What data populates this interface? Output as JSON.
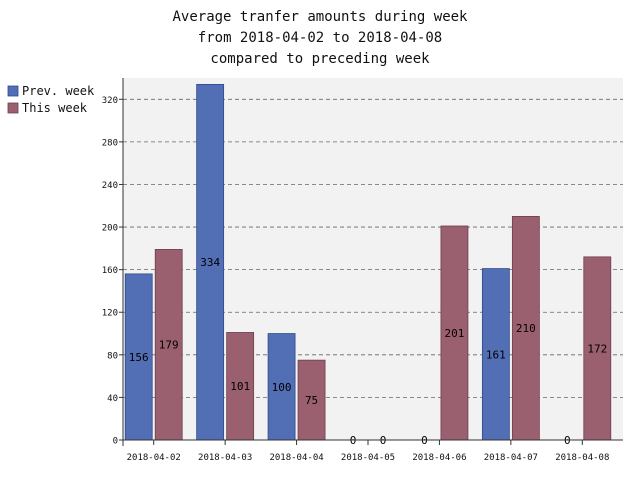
{
  "chart_data": {
    "type": "bar",
    "title_lines": [
      "Average tranfer amounts during week",
      "from 2018-04-02 to 2018-04-08",
      "compared to preceding week"
    ],
    "xlabel": "",
    "ylabel": "",
    "categories": [
      "2018-04-02",
      "2018-04-03",
      "2018-04-04",
      "2018-04-05",
      "2018-04-06",
      "2018-04-07",
      "2018-04-08"
    ],
    "series": [
      {
        "name": "Prev. week",
        "color": "#526fb5",
        "values": [
          156,
          334,
          100,
          0,
          0,
          161,
          0
        ]
      },
      {
        "name": "This week",
        "color": "#9b6070",
        "values": [
          179,
          101,
          75,
          0,
          201,
          210,
          172
        ]
      }
    ],
    "value_labels": {
      "Prev. week": [
        "156",
        "334",
        "100",
        "0",
        "0",
        "161",
        "0"
      ],
      "This week": [
        "179",
        "101",
        "75",
        "0",
        "201",
        "210",
        "172"
      ]
    },
    "ylim": [
      0,
      340
    ],
    "yticks": [
      0,
      40,
      80,
      120,
      160,
      200,
      240,
      280,
      320
    ],
    "grid": true,
    "legend_position": "top-left",
    "plot_background": "#f2f2f2"
  }
}
